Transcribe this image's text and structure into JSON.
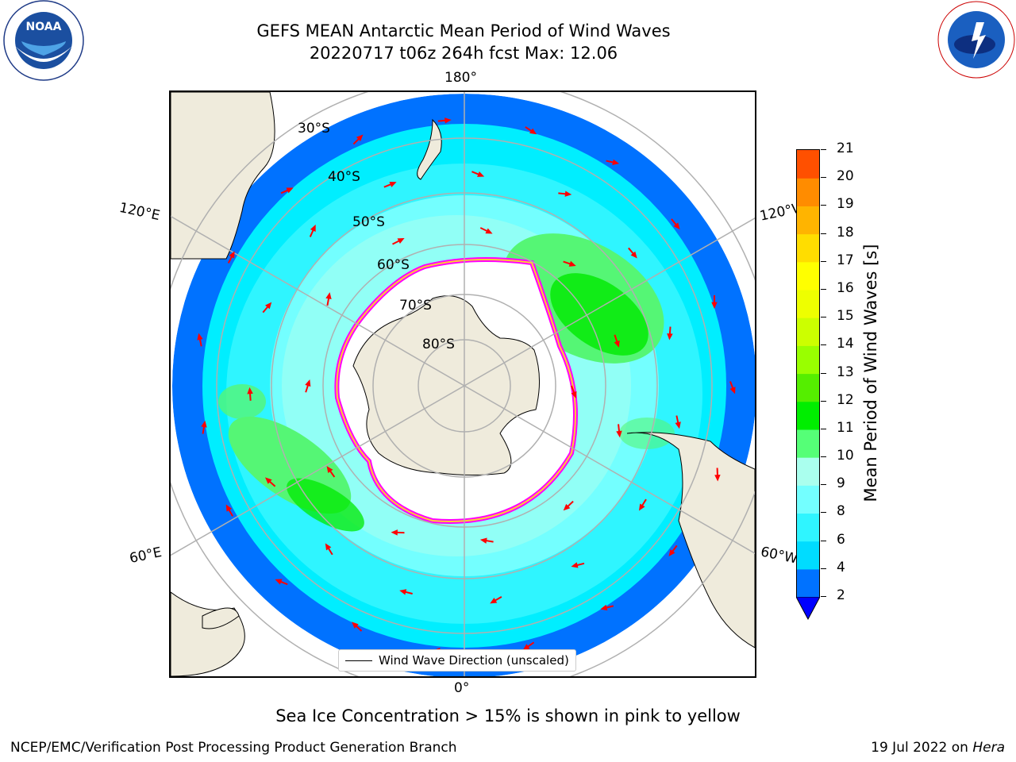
{
  "title": {
    "line1": "GEFS MEAN Antarctic Mean Period of Wind Waves",
    "line2": "20220717 t06z 264h fcst   Max: 12.06"
  },
  "map": {
    "projection": "south-polar-stereographic",
    "longitude_labels": {
      "top": "180°",
      "bottom": "0°",
      "upper_left": "120°E",
      "upper_right": "120°W",
      "lower_left": "60°E",
      "lower_right": "60°W"
    },
    "latitude_labels": [
      "30°S",
      "40°S",
      "50°S",
      "60°S",
      "70°S",
      "80°S"
    ],
    "land_color": "#efebdc",
    "ocean_bands": {
      "2-4": "#0072ff",
      "4-6": "#00eeff",
      "6-8": "#47fbff",
      "8-9": "#a6ffee",
      "9-10": "#55f675",
      "10-11": "#00ea00",
      "11-12": "#55e600"
    },
    "sea_ice_colors": [
      "#ff00ff",
      "#ff66cc",
      "#ffcc33",
      "#ffff00"
    ],
    "arrow_color": "#ff0000",
    "legend_label": "Wind Wave Direction (unscaled)"
  },
  "colorbar": {
    "label": "Mean Period of Wind Waves [s]",
    "ticks": [
      "2",
      "4",
      "6",
      "8",
      "9",
      "10",
      "11",
      "12",
      "13",
      "14",
      "15",
      "16",
      "17",
      "18",
      "19",
      "20",
      "21"
    ],
    "colors": [
      "#0072ff",
      "#00dcff",
      "#2ff5ff",
      "#73ffff",
      "#aaffee",
      "#55ff77",
      "#00ee00",
      "#55ee00",
      "#99ff00",
      "#ccff00",
      "#eeff00",
      "#ffff00",
      "#ffdd00",
      "#ffb400",
      "#ff8c00",
      "#ff5000",
      "#ff2800",
      "#ff0000"
    ],
    "extend_min_color": "#0000ff"
  },
  "notes": {
    "ice": "Sea Ice Concentration > 15% is shown in pink to yellow",
    "footer_left": "NCEP/EMC/Verification Post Processing Product Generation Branch",
    "footer_date": "19 Jul 2022 on ",
    "footer_machine": "Hera"
  },
  "logos": {
    "noaa_text": "NOAA",
    "noaa_ring": "NATIONAL OCEANIC AND ATMOSPHERIC ADMINISTRATION · U.S. DEPARTMENT OF COMMERCE",
    "nws_ring": "NATIONAL WEATHER SERVICE"
  }
}
